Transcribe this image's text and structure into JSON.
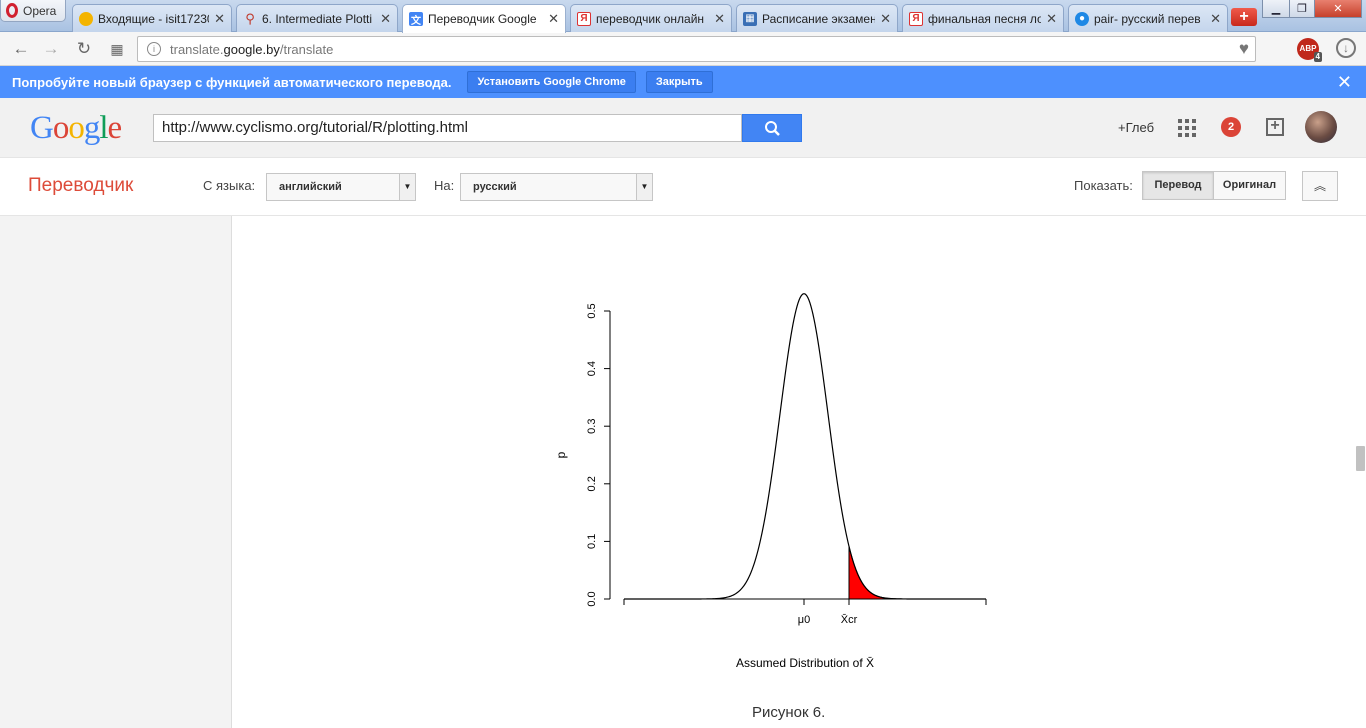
{
  "browser": {
    "opera_label": "Opera",
    "tabs": [
      {
        "title": "Входящие - isit17230",
        "icon": "mail-icon"
      },
      {
        "title": "6. Intermediate Plotti",
        "icon": "cyclismo-icon"
      },
      {
        "title": "Переводчик Google",
        "icon": "translate-icon"
      },
      {
        "title": "переводчик онлайн",
        "icon": "yandex-icon"
      },
      {
        "title": "Расписание экзамен",
        "icon": "schedule-icon"
      },
      {
        "title": "финальная песня ло",
        "icon": "yandex-icon"
      },
      {
        "title": "pair- русский перев",
        "icon": "dictionary-icon"
      }
    ],
    "active_tab_index": 2,
    "url_scheme_host": "translate.",
    "url_host_bold": "google.by",
    "url_path": "/translate",
    "adblock_label": "ABP",
    "adblock_count": "4"
  },
  "banner": {
    "message": "Попробуйте новый браузер с функцией автоматического перевода.",
    "install_button": "Установить Google Chrome",
    "close_button": "Закрыть",
    "color": "#4d90fe"
  },
  "google_header": {
    "logo_letters": [
      "G",
      "o",
      "o",
      "g",
      "l",
      "e"
    ],
    "logo_colors": [
      "#4285f4",
      "#db4437",
      "#f4b400",
      "#4285f4",
      "#0f9d58",
      "#db4437"
    ],
    "search_value": "http://www.cyclismo.org/tutorial/R/plotting.html",
    "user_name": "+Глеб",
    "notification_count": "2"
  },
  "translate_bar": {
    "title": "Переводчик",
    "from_label": "С языка:",
    "from_value": "английский",
    "to_label": "На:",
    "to_value": "русский",
    "show_label": "Показать:",
    "translation_button": "Перевод",
    "original_button": "Оригинал",
    "selected_view": "Перевод"
  },
  "chart_data": {
    "type": "line",
    "title": "",
    "xlabel": "Assumed Distribution of X̄",
    "ylabel": "p",
    "ylim": [
      0,
      0.5
    ],
    "yticks": [
      0.0,
      0.1,
      0.2,
      0.3,
      0.4,
      0.5
    ],
    "ytick_labels": [
      "0.0",
      "0.1",
      "0.2",
      "0.3",
      "0.4",
      "0.5"
    ],
    "xtick_labels": [
      "μ0",
      "X̄cr"
    ],
    "curve": {
      "kind": "normal density",
      "peak": 0.53,
      "mean_label": "μ0"
    },
    "shaded_region": {
      "from": "X̄cr",
      "to": "right tail",
      "color": "#ff0000"
    }
  },
  "caption": "Рисунок 6."
}
